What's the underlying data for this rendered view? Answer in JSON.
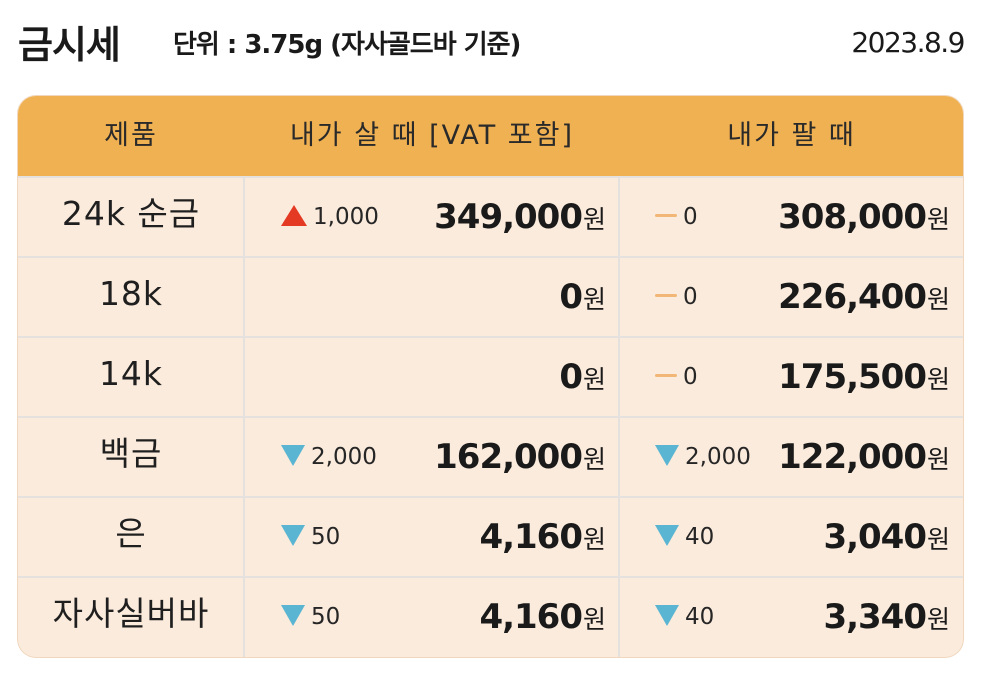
{
  "header": {
    "title": "금시세",
    "unit": "단위 : 3.75g (자사골드바 기준)",
    "date": "2023.8.9"
  },
  "table": {
    "columns": [
      "제품",
      "내가 살 때 [VAT 포함]",
      "내가 팔 때"
    ],
    "currency_suffix": "원",
    "rows": [
      {
        "name": "24k 순금",
        "buy": {
          "direction": "up",
          "change": "1,000",
          "price": "349,000"
        },
        "sell": {
          "direction": "flat",
          "change": "0",
          "price": "308,000"
        }
      },
      {
        "name": "18k",
        "buy": {
          "direction": "none",
          "change": "",
          "price": "0"
        },
        "sell": {
          "direction": "flat",
          "change": "0",
          "price": "226,400"
        }
      },
      {
        "name": "14k",
        "buy": {
          "direction": "none",
          "change": "",
          "price": "0"
        },
        "sell": {
          "direction": "flat",
          "change": "0",
          "price": "175,500"
        }
      },
      {
        "name": "백금",
        "buy": {
          "direction": "down",
          "change": "2,000",
          "price": "162,000"
        },
        "sell": {
          "direction": "down",
          "change": "2,000",
          "price": "122,000"
        }
      },
      {
        "name": "은",
        "buy": {
          "direction": "down",
          "change": "50",
          "price": "4,160"
        },
        "sell": {
          "direction": "down",
          "change": "40",
          "price": "3,040"
        }
      },
      {
        "name": "자사실버바",
        "buy": {
          "direction": "down",
          "change": "50",
          "price": "4,160"
        },
        "sell": {
          "direction": "down",
          "change": "40",
          "price": "3,340"
        }
      }
    ]
  },
  "colors": {
    "header_bg": "#f0b152",
    "row_bg": "#fbebdc",
    "up": "#e43a24",
    "down": "#5ab5d2",
    "flat": "#f2b777"
  },
  "icons": {
    "up": "triangle-up-icon",
    "down": "triangle-down-icon",
    "flat": "dash-icon"
  }
}
